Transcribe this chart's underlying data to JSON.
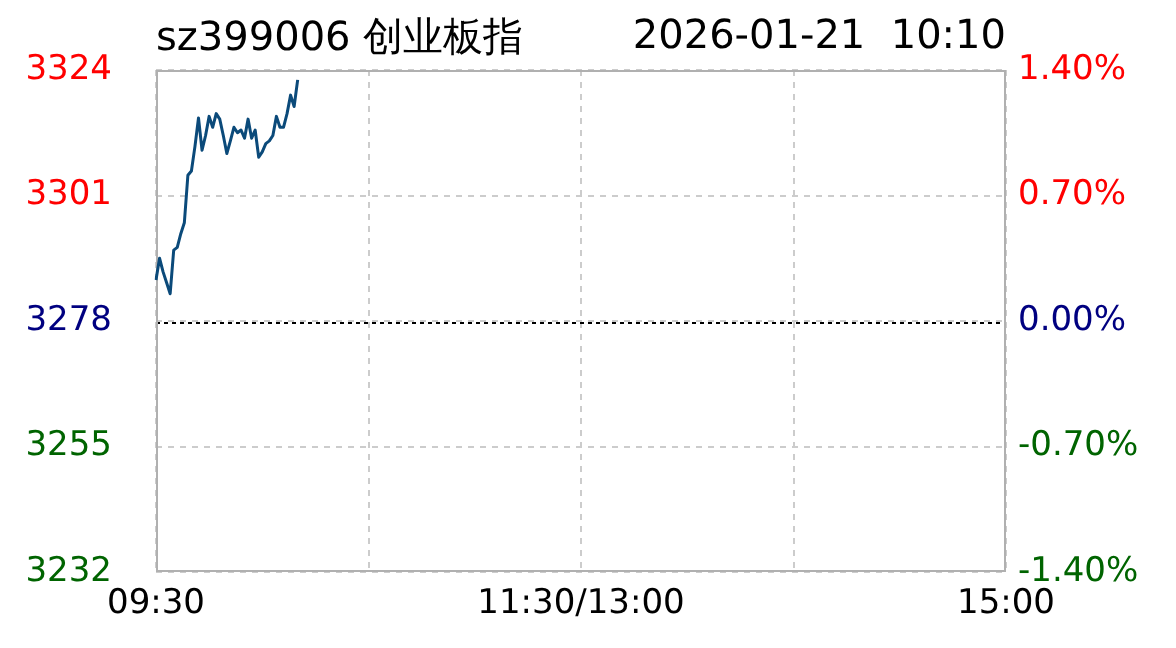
{
  "chart_data": {
    "type": "line",
    "title": "sz399006 创业板指",
    "subtitle": "2026-01-21  10:10",
    "categories": [
      "09:30",
      null,
      null,
      null,
      null,
      null,
      null,
      null,
      null,
      null,
      null,
      null,
      null,
      null,
      null,
      null,
      null,
      null,
      null,
      null,
      null,
      null,
      null,
      null,
      null,
      null,
      null,
      null,
      null,
      null,
      null,
      null,
      null,
      null,
      null,
      null,
      null,
      null,
      null,
      null,
      null,
      null,
      null,
      null,
      null,
      null,
      null,
      null,
      null,
      null,
      null,
      null,
      null,
      null,
      null,
      null,
      null,
      null,
      null,
      null,
      null,
      null,
      null,
      null,
      null,
      null,
      null,
      null,
      null,
      null,
      null,
      null,
      null,
      null,
      null,
      null,
      null,
      null,
      null,
      null,
      null,
      null,
      null,
      null,
      null,
      null,
      null,
      null,
      null,
      null,
      null,
      null,
      null,
      null,
      null,
      null,
      null,
      null,
      null,
      null,
      null,
      null,
      null,
      null,
      null,
      null,
      null,
      null,
      null,
      null,
      null,
      null,
      null,
      null,
      null,
      null,
      null,
      null,
      null,
      null,
      "11:30/13:00",
      null,
      null,
      null,
      null,
      null,
      null,
      null,
      null,
      null,
      null,
      null,
      null,
      null,
      null,
      null,
      null,
      null,
      null,
      null,
      null,
      null,
      null,
      null,
      null,
      null,
      null,
      null,
      null,
      null,
      null,
      null,
      null,
      null,
      null,
      null,
      null,
      null,
      null,
      null,
      null,
      null,
      null,
      null,
      null,
      null,
      null,
      null,
      null,
      null,
      null,
      null,
      null,
      null,
      null,
      null,
      null,
      null,
      null,
      null,
      null,
      null,
      null,
      null,
      null,
      null,
      null,
      null,
      null,
      null,
      null,
      null,
      null,
      null,
      null,
      null,
      null,
      null,
      null,
      null,
      null,
      null,
      null,
      null,
      null,
      null,
      null,
      null,
      null,
      null,
      null,
      null,
      null,
      null,
      null,
      null,
      null,
      null,
      null,
      null,
      null,
      null,
      null,
      null,
      null,
      null,
      null,
      null,
      null,
      null,
      null,
      null,
      null,
      null,
      null,
      null,
      null,
      null,
      null,
      null,
      "15:00"
    ],
    "series": [
      {
        "color": "#0b4a7a",
        "values": [
          3285.5,
          3289.5,
          3287,
          3285,
          3283,
          3291,
          3291.5,
          3294,
          3296,
          3304.7,
          3305.5,
          3310,
          3315.2,
          3309.3,
          3312,
          3315.5,
          3313.5,
          3316,
          3315,
          3312,
          3308.7,
          3311,
          3313.5,
          3312.5,
          3313,
          3311.5,
          3315,
          3311.5,
          3313,
          3308,
          3309,
          3310.5,
          3311,
          3312,
          3315.5,
          3313.5,
          3313.5,
          3316,
          3319.4,
          3317.3,
          3322.2,
          null,
          null,
          null,
          null,
          null,
          null,
          null,
          null,
          null,
          null,
          null,
          null,
          null,
          null,
          null,
          null,
          null,
          null,
          null,
          null,
          null,
          null,
          null,
          null,
          null,
          null,
          null,
          null,
          null,
          null,
          null,
          null,
          null,
          null,
          null,
          null,
          null,
          null,
          null,
          null,
          null,
          null,
          null,
          null,
          null,
          null,
          null,
          null,
          null,
          null,
          null,
          null,
          null,
          null,
          null,
          null,
          null,
          null,
          null,
          null,
          null,
          null,
          null,
          null,
          null,
          null,
          null,
          null,
          null,
          null,
          null,
          null,
          null,
          null,
          null,
          null,
          null,
          null,
          null,
          null,
          null,
          null,
          null,
          null,
          null,
          null,
          null,
          null,
          null,
          null,
          null,
          null,
          null,
          null,
          null,
          null,
          null,
          null,
          null,
          null,
          null,
          null,
          null,
          null,
          null,
          null,
          null,
          null,
          null,
          null,
          null,
          null,
          null,
          null,
          null,
          null,
          null,
          null,
          null,
          null,
          null,
          null,
          null,
          null,
          null,
          null,
          null,
          null,
          null,
          null,
          null,
          null,
          null,
          null,
          null,
          null,
          null,
          null,
          null,
          null,
          null,
          null,
          null,
          null,
          null,
          null,
          null,
          null,
          null,
          null,
          null,
          null,
          null,
          null,
          null,
          null,
          null,
          null,
          null,
          null,
          null,
          null,
          null,
          null,
          null,
          null,
          null,
          null,
          null,
          null,
          null,
          null,
          null,
          null,
          null,
          null,
          null,
          null,
          null,
          null,
          null,
          null,
          null,
          null,
          null,
          null,
          null,
          null,
          null,
          null,
          null,
          null,
          null,
          null,
          null,
          null,
          null,
          null,
          null,
          null
        ]
      }
    ],
    "ylim": [
      3232,
      3324
    ],
    "yticks": [
      3232,
      3255,
      3278,
      3301,
      3324
    ],
    "y2lim": [
      -1.4,
      1.4
    ],
    "y2ticks": [
      {
        "value": -1.4,
        "label": "-1.40%"
      },
      {
        "value": -0.7,
        "label": "-0.70%"
      },
      {
        "value": 0,
        "label": "0.00%"
      },
      {
        "value": 0.7,
        "label": "0.70%"
      },
      {
        "value": 1.4,
        "label": "1.40%"
      }
    ],
    "ref_lines": [
      {
        "axis": "y",
        "value": 3278,
        "color": "#000000",
        "line_style": "dotted"
      }
    ],
    "grid": true,
    "marker": "none",
    "line_style": "solid"
  }
}
